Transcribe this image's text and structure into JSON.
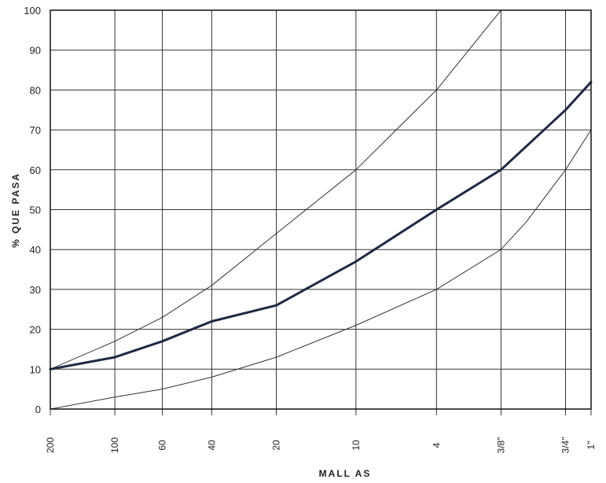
{
  "chart_data": {
    "type": "line",
    "title": "",
    "xlabel": "MALL AS",
    "ylabel": "% QUE PASA",
    "ylim": [
      0,
      100
    ],
    "yticks": [
      0,
      10,
      20,
      30,
      40,
      50,
      60,
      70,
      80,
      90,
      100
    ],
    "x_scale": "log",
    "x_unit": "mm (sieve opening)",
    "grid": true,
    "legend": "none",
    "x_ticks": [
      {
        "label": "200",
        "x": 0.075
      },
      {
        "label": "100",
        "x": 0.15
      },
      {
        "label": "60",
        "x": 0.25
      },
      {
        "label": "40",
        "x": 0.425
      },
      {
        "label": "20",
        "x": 0.85
      },
      {
        "label": "10",
        "x": 2.0
      },
      {
        "label": "4",
        "x": 4.75
      },
      {
        "label": "3/8\"",
        "x": 9.5
      },
      {
        "label": "3/4\"",
        "x": 19.0
      },
      {
        "label": "1\"",
        "x": 25.0
      }
    ],
    "series": [
      {
        "role": "lower-limit",
        "color": "#333333",
        "points": [
          [
            0.075,
            0
          ],
          [
            0.15,
            3
          ],
          [
            0.25,
            5
          ],
          [
            0.425,
            8
          ],
          [
            0.85,
            13
          ],
          [
            2.0,
            21
          ],
          [
            4.75,
            30
          ],
          [
            9.5,
            40
          ],
          [
            12.5,
            47
          ],
          [
            19.0,
            60
          ],
          [
            25.0,
            70
          ]
        ]
      },
      {
        "role": "upper-limit",
        "color": "#333333",
        "points": [
          [
            0.075,
            10
          ],
          [
            0.15,
            17
          ],
          [
            0.25,
            23
          ],
          [
            0.425,
            31
          ],
          [
            0.85,
            44
          ],
          [
            2.0,
            60
          ],
          [
            4.75,
            80
          ],
          [
            9.5,
            100
          ]
        ]
      },
      {
        "role": "gradation",
        "color": "#1e2a44",
        "points": [
          [
            0.075,
            10
          ],
          [
            0.15,
            13
          ],
          [
            0.25,
            17
          ],
          [
            0.425,
            22
          ],
          [
            0.85,
            26
          ],
          [
            2.0,
            37
          ],
          [
            4.75,
            50
          ],
          [
            9.5,
            60
          ],
          [
            19.0,
            75
          ],
          [
            25.0,
            82
          ]
        ]
      }
    ]
  }
}
